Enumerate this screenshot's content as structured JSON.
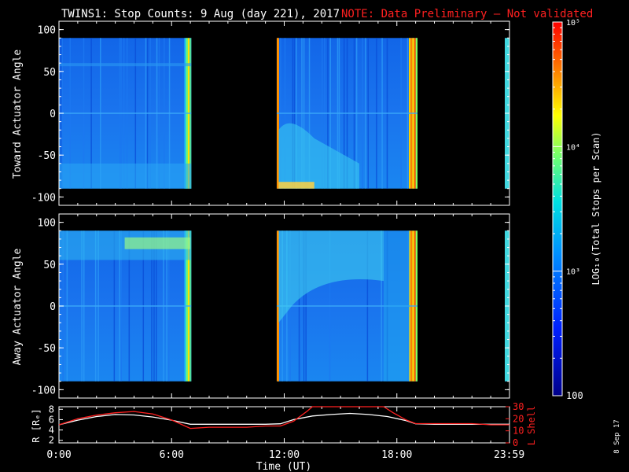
{
  "header": {
    "title": "TWINS1: Stop Counts:  9 Aug (day 221), 2017",
    "note": "NOTE: Data Preliminary — Not validated"
  },
  "stamp": "8 Sep 17",
  "colors": {
    "background": "#000000",
    "text": "#ffffff",
    "note": "#ff2020",
    "lshell": "#ff2020",
    "r_line": "#ffffff"
  },
  "chart_data": [
    {
      "type": "heatmap",
      "panel": "toward",
      "ylabel": "Toward Actuator Angle",
      "ylim": [
        -110,
        110
      ],
      "yticks": [
        100,
        50,
        0,
        -50,
        -100
      ],
      "data_y_range": [
        -90,
        90
      ],
      "xlim_hours": [
        0,
        24
      ],
      "data_blocks_hours": [
        [
          0.0,
          7.05
        ],
        [
          11.6,
          19.1
        ],
        [
          23.75,
          24.0
        ]
      ],
      "colorscale": "log",
      "clim": [
        100,
        100000
      ]
    },
    {
      "type": "heatmap",
      "panel": "away",
      "ylabel": "Away Actuator Angle",
      "ylim": [
        -110,
        110
      ],
      "yticks": [
        100,
        50,
        0,
        -50,
        -100
      ],
      "data_y_range": [
        -90,
        90
      ],
      "xlim_hours": [
        0,
        24
      ],
      "data_blocks_hours": [
        [
          0.0,
          7.05
        ],
        [
          11.6,
          19.1
        ],
        [
          23.75,
          24.0
        ]
      ],
      "colorscale": "log",
      "clim": [
        100,
        100000
      ]
    },
    {
      "type": "line",
      "panel": "orbit",
      "ylabel_left": "R [Rₑ]",
      "ylabel_right": "L Shell",
      "yticks_left": [
        8,
        6,
        4,
        2
      ],
      "ylim_left": [
        1.5,
        8.5
      ],
      "yticks_right": [
        30,
        20,
        10,
        0
      ],
      "ylim_right": [
        0,
        30
      ],
      "series": [
        {
          "name": "R",
          "axis": "left",
          "x_hours": [
            0,
            1,
            2,
            3,
            4,
            5,
            6,
            7,
            8,
            9,
            10,
            11,
            11.8,
            12.5,
            13.5,
            14.5,
            15.5,
            16.5,
            17.5,
            18.5,
            19,
            20,
            21,
            22,
            23,
            24
          ],
          "values": [
            5.0,
            5.9,
            6.6,
            7.0,
            6.9,
            6.5,
            5.9,
            5.1,
            5.1,
            5.1,
            5.1,
            5.1,
            5.2,
            6.0,
            6.7,
            7.0,
            7.2,
            7.0,
            6.6,
            5.8,
            5.2,
            5.1,
            5.1,
            5.1,
            5.1,
            5.1
          ]
        },
        {
          "name": "L Shell",
          "axis": "right",
          "x_hours": [
            0,
            1,
            2,
            3,
            4,
            5,
            6,
            7,
            8,
            9,
            10,
            11,
            11.8,
            12.5,
            13.2,
            13.5,
            17.3,
            17.8,
            18.5,
            19,
            20,
            21,
            22,
            23,
            24
          ],
          "values": [
            15,
            20,
            23,
            25,
            26,
            24,
            19,
            12,
            13,
            13,
            13,
            14,
            14,
            18,
            26,
            30,
            30,
            25,
            19,
            16,
            16,
            16,
            16,
            15,
            15
          ]
        }
      ]
    },
    {
      "type": "colorbar",
      "label": "LOG₁₀(Total Stops per Scan)",
      "ticks": [
        {
          "value": 100000,
          "label": "10⁵"
        },
        {
          "value": 10000,
          "label": "10⁴"
        },
        {
          "value": 1000,
          "label": "10³"
        },
        {
          "value": 100,
          "label": "100"
        }
      ],
      "range": [
        100,
        100000
      ]
    }
  ],
  "xaxis": {
    "label": "Time (UT)",
    "tick_labels": [
      "0:00",
      "6:00",
      "12:00",
      "18:00",
      "23:59"
    ],
    "tick_hours": [
      0,
      6,
      12,
      18,
      23.983
    ]
  }
}
